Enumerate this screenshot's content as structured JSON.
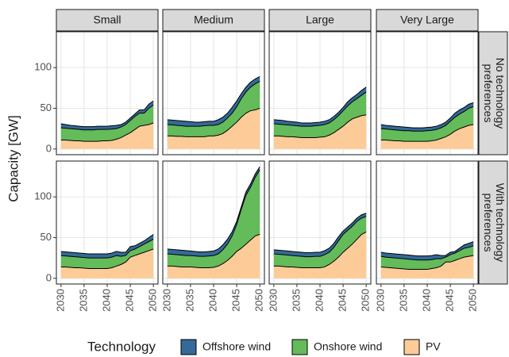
{
  "chart_data": {
    "type": "area",
    "y_label": "Capacity [GW]",
    "legend_title": "Technology",
    "facet_cols": [
      "Small",
      "Medium",
      "Large",
      "Very Large"
    ],
    "facet_rows": [
      [
        "No technology",
        "preferences"
      ],
      [
        "With technology",
        "preferences"
      ]
    ],
    "x": [
      2030,
      2031,
      2032,
      2033,
      2034,
      2035,
      2036,
      2037,
      2038,
      2039,
      2040,
      2041,
      2042,
      2043,
      2044,
      2045,
      2046,
      2047,
      2048,
      2049,
      2050
    ],
    "xlim": [
      2029,
      2051
    ],
    "xticks": [
      2030,
      2035,
      2040,
      2045,
      2050
    ],
    "ylim": [
      -7,
      144
    ],
    "yticks": [
      0,
      50,
      100
    ],
    "grid": true,
    "series": [
      {
        "name": "Offshore wind",
        "color": "#336a99",
        "values": [
          [
            5,
            4.5,
            4,
            4,
            4,
            4,
            4,
            4,
            4,
            4,
            4,
            4,
            4,
            3,
            3,
            3,
            3,
            4,
            4,
            5,
            5
          ],
          [
            6,
            6,
            6,
            6,
            6,
            5.5,
            5,
            5,
            5,
            5,
            5,
            6,
            6,
            6,
            7,
            7,
            6,
            6,
            6,
            6,
            6
          ],
          [
            5,
            5,
            5,
            4.5,
            4.5,
            4.5,
            4,
            4,
            4,
            4,
            4,
            4,
            4,
            4,
            4,
            4,
            5,
            5,
            5,
            6,
            6
          ],
          [
            5,
            4.5,
            4.5,
            4.5,
            4.5,
            4.5,
            4,
            4,
            4,
            4,
            4,
            4,
            4,
            4,
            4,
            4,
            5,
            5,
            5,
            5,
            5
          ],
          [
            5,
            5,
            5,
            5,
            5,
            5,
            5,
            5,
            5,
            5,
            5,
            5,
            5,
            5,
            4,
            5,
            4,
            4,
            4,
            5,
            6
          ],
          [
            6,
            6,
            6,
            6,
            6,
            5.5,
            5.5,
            5.5,
            5.5,
            5.5,
            5.5,
            6,
            6,
            6,
            5,
            4,
            3,
            4,
            4,
            4,
            4
          ],
          [
            5,
            5,
            5,
            5,
            5,
            5,
            5,
            5,
            5,
            5,
            5,
            5,
            5,
            5,
            5,
            4,
            4,
            4,
            4,
            4,
            4
          ],
          [
            5,
            5,
            5,
            5,
            5,
            5,
            5,
            5,
            5,
            5,
            5,
            5,
            5,
            4,
            2,
            3,
            2,
            3,
            4,
            5,
            5
          ]
        ]
      },
      {
        "name": "Onshore wind",
        "color": "#63bb59",
        "values": [
          [
            15,
            14.5,
            14.5,
            14.5,
            14,
            14,
            14,
            14,
            14.5,
            14,
            14,
            14,
            13,
            13,
            13,
            15,
            16,
            16,
            15,
            20,
            22
          ],
          [
            14,
            13.5,
            13.5,
            13,
            13,
            13,
            13,
            13,
            13.5,
            13,
            13,
            13,
            14,
            15,
            16,
            19,
            23,
            26,
            29,
            32,
            33
          ],
          [
            15,
            14.5,
            14.5,
            14.5,
            14,
            14,
            14,
            14,
            14,
            14.5,
            14.5,
            15,
            15,
            16,
            17,
            19,
            20,
            21,
            23,
            25,
            28
          ],
          [
            14,
            13.5,
            13.5,
            13.5,
            13,
            13,
            13,
            12.5,
            12.5,
            12.5,
            13,
            13,
            13,
            13,
            14,
            16,
            17,
            18,
            19,
            21,
            22
          ],
          [
            14,
            13.5,
            13.5,
            13.5,
            13,
            13,
            13,
            13,
            13,
            13,
            13,
            13,
            13,
            10,
            8,
            8,
            8,
            9,
            10,
            11,
            12
          ],
          [
            15,
            14.5,
            14.5,
            14.5,
            14,
            14,
            14,
            14,
            14,
            14.5,
            14.5,
            15,
            17,
            20,
            25,
            33,
            48,
            60,
            65,
            72,
            79
          ],
          [
            15,
            14.5,
            14.5,
            14.5,
            14,
            14,
            14,
            13.5,
            13.5,
            14,
            14,
            15,
            15,
            17,
            20,
            22,
            22,
            22,
            22,
            20,
            19
          ],
          [
            13,
            12.5,
            12.5,
            12.5,
            12.5,
            12.5,
            12.5,
            12,
            11.5,
            11.5,
            11.5,
            11,
            11,
            9,
            6,
            9,
            9,
            10,
            11,
            11,
            12
          ]
        ]
      },
      {
        "name": "PV",
        "color": "#fdcb98",
        "values": [
          [
            11,
            11,
            10.5,
            10,
            10,
            9.5,
            9.5,
            9.5,
            9.5,
            10,
            10,
            10.5,
            12,
            14,
            17,
            20,
            24,
            28,
            29,
            30,
            32
          ],
          [
            16,
            16,
            15.5,
            15.5,
            15,
            15,
            15,
            15,
            15,
            16,
            16,
            17,
            19,
            23,
            28,
            33,
            39,
            44,
            47,
            48,
            50
          ],
          [
            16,
            16,
            15.5,
            15,
            15,
            14.5,
            14,
            14,
            14,
            14,
            14.5,
            15,
            17,
            20,
            24,
            28,
            33,
            37,
            39,
            41,
            42
          ],
          [
            11,
            11,
            10.5,
            10,
            10,
            9.5,
            9.5,
            9.5,
            9.5,
            9.5,
            9.5,
            10,
            11,
            13,
            15,
            18,
            22,
            25,
            27,
            29,
            30
          ],
          [
            14,
            14,
            13.5,
            13,
            13,
            12.5,
            12,
            12,
            12,
            12,
            12,
            13,
            15,
            17,
            20,
            26,
            28,
            30,
            32,
            34,
            36
          ],
          [
            15,
            15,
            14.5,
            14,
            14,
            14,
            13.5,
            13,
            13,
            13,
            13.5,
            15,
            18,
            22,
            27,
            33,
            37,
            42,
            47,
            52,
            54
          ],
          [
            15,
            15,
            14.5,
            14,
            14,
            13.5,
            13,
            13,
            13,
            13,
            13,
            14,
            17,
            21,
            26,
            32,
            37,
            42,
            48,
            54,
            57
          ],
          [
            14,
            13.5,
            13,
            12.5,
            12,
            11.5,
            11,
            11,
            11,
            11,
            11,
            12,
            13,
            15,
            20,
            20,
            22,
            24,
            26,
            27,
            28
          ]
        ]
      }
    ]
  }
}
